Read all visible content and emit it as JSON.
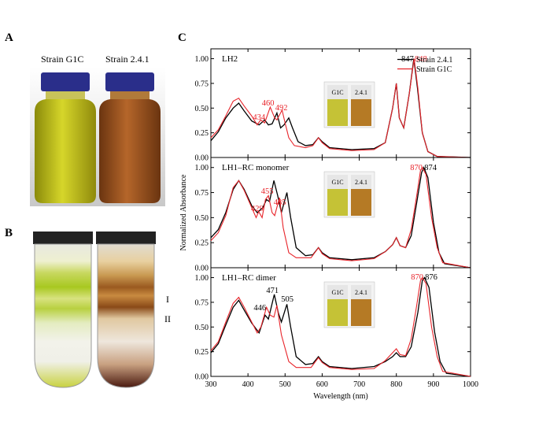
{
  "panels": {
    "a": "A",
    "b": "B",
    "c": "C"
  },
  "photo_a": {
    "label_left": "Strain G1C",
    "label_right": "Strain 2.4.1",
    "bottle_left_color": "#b8b010",
    "bottle_right_color": "#9a5418",
    "cap_color": "#2a2e8a"
  },
  "photo_b": {
    "band_1": "I",
    "band_2": "II"
  },
  "chart_data": {
    "type": "line",
    "xlabel": "Wavelength (nm)",
    "ylabel": "Normalized Absorbance",
    "xlim": [
      300,
      1000
    ],
    "x_ticks": [
      300,
      400,
      500,
      600,
      700,
      800,
      900,
      1000
    ],
    "y_ticks": [
      0.0,
      0.25,
      0.5,
      0.75,
      1.0
    ],
    "y_tick_labels": [
      "0.00",
      "0.25",
      "0.50",
      "0.75",
      "1.00"
    ],
    "legend": {
      "position": "top-right",
      "entries": [
        {
          "name": "Strain 2.4.1",
          "color": "#000000"
        },
        {
          "name": "Strain G1C",
          "color": "#e8242a"
        }
      ]
    },
    "inset_labels": [
      "G1C",
      "2.4.1"
    ],
    "subplots": [
      {
        "title": "LH2",
        "annotations_red": [
          "434",
          "460",
          "492",
          "848"
        ],
        "annotations_black": [
          "847"
        ],
        "series": [
          {
            "name": "Strain 2.4.1",
            "color": "#000000",
            "points": [
              [
                300,
                0.17
              ],
              [
                320,
                0.26
              ],
              [
                340,
                0.4
              ],
              [
                360,
                0.5
              ],
              [
                375,
                0.55
              ],
              [
                390,
                0.47
              ],
              [
                410,
                0.37
              ],
              [
                430,
                0.33
              ],
              [
                445,
                0.38
              ],
              [
                455,
                0.33
              ],
              [
                465,
                0.34
              ],
              [
                478,
                0.45
              ],
              [
                488,
                0.3
              ],
              [
                497,
                0.33
              ],
              [
                510,
                0.4
              ],
              [
                520,
                0.3
              ],
              [
                535,
                0.16
              ],
              [
                555,
                0.12
              ],
              [
                575,
                0.13
              ],
              [
                590,
                0.2
              ],
              [
                600,
                0.16
              ],
              [
                620,
                0.1
              ],
              [
                680,
                0.08
              ],
              [
                740,
                0.09
              ],
              [
                770,
                0.15
              ],
              [
                790,
                0.5
              ],
              [
                800,
                0.75
              ],
              [
                808,
                0.4
              ],
              [
                820,
                0.3
              ],
              [
                835,
                0.65
              ],
              [
                847,
                1.0
              ],
              [
                857,
                0.7
              ],
              [
                870,
                0.25
              ],
              [
                885,
                0.06
              ],
              [
                910,
                0.01
              ],
              [
                1000,
                0.0
              ]
            ]
          },
          {
            "name": "Strain G1C",
            "color": "#e8242a",
            "points": [
              [
                300,
                0.2
              ],
              [
                320,
                0.28
              ],
              [
                340,
                0.42
              ],
              [
                360,
                0.57
              ],
              [
                375,
                0.6
              ],
              [
                390,
                0.52
              ],
              [
                410,
                0.42
              ],
              [
                425,
                0.33
              ],
              [
                434,
                0.38
              ],
              [
                445,
                0.35
              ],
              [
                460,
                0.51
              ],
              [
                472,
                0.4
              ],
              [
                478,
                0.38
              ],
              [
                492,
                0.48
              ],
              [
                500,
                0.35
              ],
              [
                510,
                0.2
              ],
              [
                525,
                0.12
              ],
              [
                555,
                0.1
              ],
              [
                575,
                0.12
              ],
              [
                590,
                0.2
              ],
              [
                600,
                0.15
              ],
              [
                620,
                0.09
              ],
              [
                680,
                0.07
              ],
              [
                740,
                0.08
              ],
              [
                770,
                0.15
              ],
              [
                790,
                0.5
              ],
              [
                800,
                0.75
              ],
              [
                808,
                0.4
              ],
              [
                820,
                0.3
              ],
              [
                835,
                0.65
              ],
              [
                848,
                1.0
              ],
              [
                858,
                0.7
              ],
              [
                870,
                0.25
              ],
              [
                885,
                0.06
              ],
              [
                910,
                0.01
              ],
              [
                1000,
                0.0
              ]
            ]
          }
        ]
      },
      {
        "title": "LH1–RC monomer",
        "annotations_red": [
          "429",
          "455",
          "485",
          "870"
        ],
        "annotations_black": [
          "874"
        ],
        "series": [
          {
            "name": "Strain 2.4.1",
            "color": "#000000",
            "points": [
              [
                300,
                0.3
              ],
              [
                320,
                0.38
              ],
              [
                340,
                0.55
              ],
              [
                360,
                0.78
              ],
              [
                375,
                0.87
              ],
              [
                390,
                0.78
              ],
              [
                410,
                0.62
              ],
              [
                425,
                0.55
              ],
              [
                440,
                0.6
              ],
              [
                450,
                0.68
              ],
              [
                458,
                0.66
              ],
              [
                470,
                0.87
              ],
              [
                480,
                0.72
              ],
              [
                490,
                0.55
              ],
              [
                505,
                0.75
              ],
              [
                515,
                0.5
              ],
              [
                530,
                0.2
              ],
              [
                555,
                0.12
              ],
              [
                575,
                0.13
              ],
              [
                590,
                0.2
              ],
              [
                600,
                0.15
              ],
              [
                620,
                0.1
              ],
              [
                680,
                0.08
              ],
              [
                740,
                0.1
              ],
              [
                770,
                0.16
              ],
              [
                790,
                0.23
              ],
              [
                800,
                0.3
              ],
              [
                810,
                0.22
              ],
              [
                825,
                0.2
              ],
              [
                840,
                0.32
              ],
              [
                855,
                0.65
              ],
              [
                868,
                0.95
              ],
              [
                874,
                1.0
              ],
              [
                885,
                0.9
              ],
              [
                900,
                0.45
              ],
              [
                915,
                0.15
              ],
              [
                930,
                0.04
              ],
              [
                1000,
                0.0
              ]
            ]
          },
          {
            "name": "Strain G1C",
            "color": "#e8242a",
            "points": [
              [
                300,
                0.27
              ],
              [
                320,
                0.35
              ],
              [
                340,
                0.52
              ],
              [
                360,
                0.8
              ],
              [
                375,
                0.87
              ],
              [
                390,
                0.77
              ],
              [
                410,
                0.6
              ],
              [
                422,
                0.5
              ],
              [
                429,
                0.56
              ],
              [
                438,
                0.5
              ],
              [
                447,
                0.68
              ],
              [
                455,
                0.72
              ],
              [
                465,
                0.55
              ],
              [
                472,
                0.52
              ],
              [
                485,
                0.7
              ],
              [
                495,
                0.4
              ],
              [
                510,
                0.15
              ],
              [
                530,
                0.1
              ],
              [
                570,
                0.1
              ],
              [
                590,
                0.2
              ],
              [
                600,
                0.14
              ],
              [
                620,
                0.09
              ],
              [
                680,
                0.07
              ],
              [
                740,
                0.09
              ],
              [
                770,
                0.16
              ],
              [
                790,
                0.23
              ],
              [
                800,
                0.3
              ],
              [
                810,
                0.22
              ],
              [
                825,
                0.2
              ],
              [
                840,
                0.38
              ],
              [
                855,
                0.72
              ],
              [
                865,
                0.97
              ],
              [
                870,
                1.0
              ],
              [
                880,
                0.93
              ],
              [
                895,
                0.5
              ],
              [
                910,
                0.2
              ],
              [
                925,
                0.05
              ],
              [
                1000,
                0.0
              ]
            ]
          }
        ]
      },
      {
        "title": "LH1–RC dimer",
        "annotations_red": [
          "870"
        ],
        "annotations_black": [
          "446",
          "471",
          "505",
          "876"
        ],
        "series": [
          {
            "name": "Strain 2.4.1",
            "color": "#000000",
            "points": [
              [
                300,
                0.24
              ],
              [
                320,
                0.33
              ],
              [
                340,
                0.52
              ],
              [
                360,
                0.7
              ],
              [
                375,
                0.77
              ],
              [
                390,
                0.67
              ],
              [
                410,
                0.54
              ],
              [
                430,
                0.44
              ],
              [
                446,
                0.62
              ],
              [
                455,
                0.58
              ],
              [
                471,
                0.83
              ],
              [
                482,
                0.64
              ],
              [
                490,
                0.55
              ],
              [
                505,
                0.73
              ],
              [
                515,
                0.5
              ],
              [
                530,
                0.2
              ],
              [
                555,
                0.12
              ],
              [
                575,
                0.13
              ],
              [
                590,
                0.2
              ],
              [
                600,
                0.15
              ],
              [
                620,
                0.1
              ],
              [
                680,
                0.08
              ],
              [
                740,
                0.1
              ],
              [
                770,
                0.15
              ],
              [
                790,
                0.2
              ],
              [
                800,
                0.24
              ],
              [
                810,
                0.2
              ],
              [
                825,
                0.2
              ],
              [
                840,
                0.3
              ],
              [
                858,
                0.65
              ],
              [
                870,
                0.97
              ],
              [
                876,
                1.0
              ],
              [
                888,
                0.9
              ],
              [
                903,
                0.45
              ],
              [
                918,
                0.15
              ],
              [
                935,
                0.03
              ],
              [
                1000,
                0.0
              ]
            ]
          },
          {
            "name": "Strain G1C",
            "color": "#e8242a",
            "points": [
              [
                300,
                0.26
              ],
              [
                320,
                0.35
              ],
              [
                340,
                0.55
              ],
              [
                360,
                0.74
              ],
              [
                375,
                0.8
              ],
              [
                390,
                0.7
              ],
              [
                410,
                0.55
              ],
              [
                425,
                0.44
              ],
              [
                435,
                0.5
              ],
              [
                450,
                0.7
              ],
              [
                460,
                0.62
              ],
              [
                470,
                0.6
              ],
              [
                478,
                0.72
              ],
              [
                490,
                0.42
              ],
              [
                510,
                0.15
              ],
              [
                530,
                0.09
              ],
              [
                570,
                0.09
              ],
              [
                590,
                0.19
              ],
              [
                600,
                0.14
              ],
              [
                620,
                0.09
              ],
              [
                680,
                0.07
              ],
              [
                740,
                0.08
              ],
              [
                770,
                0.16
              ],
              [
                790,
                0.24
              ],
              [
                800,
                0.28
              ],
              [
                810,
                0.22
              ],
              [
                825,
                0.21
              ],
              [
                840,
                0.38
              ],
              [
                855,
                0.72
              ],
              [
                865,
                0.97
              ],
              [
                870,
                1.0
              ],
              [
                880,
                0.94
              ],
              [
                895,
                0.5
              ],
              [
                910,
                0.2
              ],
              [
                925,
                0.05
              ],
              [
                1000,
                0.0
              ]
            ]
          }
        ]
      }
    ]
  }
}
